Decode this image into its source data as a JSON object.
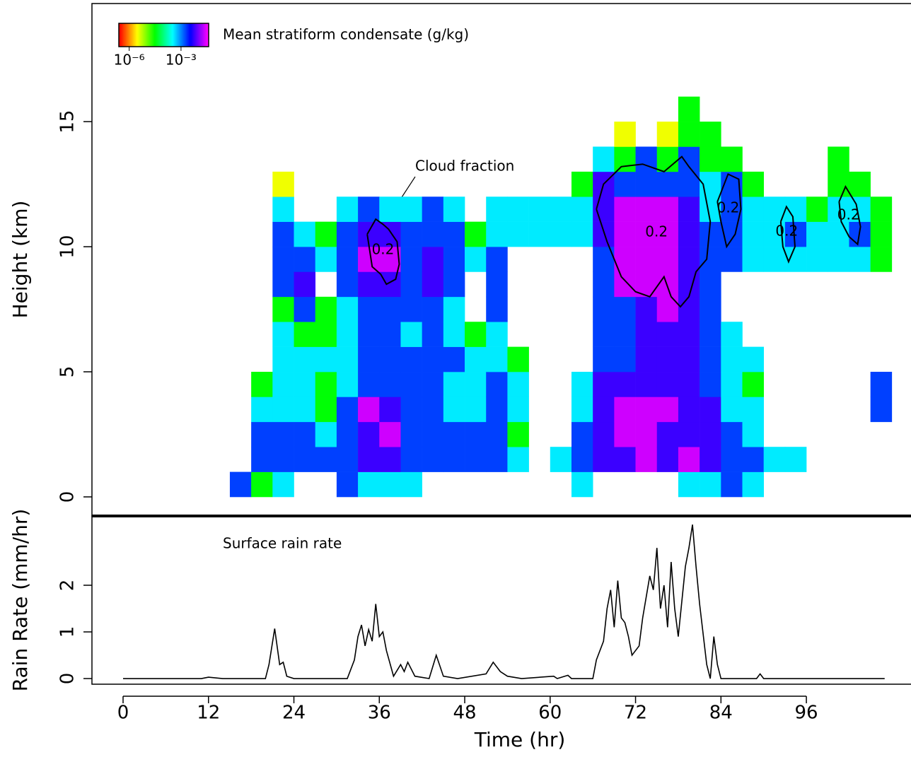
{
  "chart_data": [
    {
      "type": "heatmap",
      "ylabel": "Height (km)",
      "xlim": [
        -4.373,
        110.7
      ],
      "ylim": [
        -0.763,
        19.72
      ],
      "yticks": [
        0,
        5,
        10,
        15
      ],
      "colorbar": {
        "label": "Mean stratiform condensate (g/kg)",
        "clim": [
          -6.6,
          -1.4
        ],
        "ticks": [
          {
            "value": -6,
            "label": "10⁻⁶"
          },
          {
            "value": -3,
            "label": "10⁻³"
          }
        ]
      },
      "annotation": "Cloud fraction",
      "heatmap": {
        "t_edges": [
          15,
          18,
          21,
          24,
          27,
          30,
          33,
          36,
          39,
          42,
          45,
          48,
          51,
          54,
          57,
          60,
          63,
          66,
          69,
          72,
          75,
          78,
          81,
          84,
          87,
          90,
          93,
          96,
          99,
          102,
          105,
          108
        ],
        "z_edges": [
          0,
          1,
          2,
          3,
          4,
          5,
          6,
          7,
          8,
          9,
          10,
          11,
          12,
          13,
          14,
          15,
          16,
          17
        ],
        "values": [
          [
            -2.7,
            null,
            null,
            null,
            null,
            null,
            null,
            null,
            null,
            null,
            null,
            null,
            null,
            null,
            null,
            null,
            null
          ],
          [
            -4.5,
            -2.7,
            -2.7,
            -3.4,
            -4.5,
            null,
            null,
            null,
            null,
            null,
            null,
            null,
            null,
            null,
            null,
            null,
            null
          ],
          [
            -3.4,
            -2.7,
            -2.7,
            -3.4,
            -3.4,
            -3.4,
            -3.4,
            -4.5,
            -2.7,
            -2.7,
            -2.7,
            -3.4,
            -5.5,
            null,
            null,
            null,
            null
          ],
          [
            null,
            -2.7,
            -2.7,
            -3.4,
            -3.4,
            -3.4,
            -4.5,
            -2.7,
            -2.2,
            -2.7,
            -3.4,
            null,
            null,
            null,
            null,
            null,
            null
          ],
          [
            null,
            -2.7,
            -3.4,
            -4.5,
            -4.5,
            -3.4,
            -4.5,
            -4.5,
            null,
            -3.4,
            -4.5,
            null,
            null,
            null,
            null,
            null,
            null
          ],
          [
            -2.7,
            -2.7,
            -2.7,
            -2.7,
            -3.4,
            -3.4,
            -3.4,
            -3.4,
            -2.7,
            -2.7,
            -2.7,
            -3.4,
            null,
            null,
            null,
            null,
            null
          ],
          [
            -3.4,
            -2.2,
            -2.2,
            -1.6,
            -2.7,
            -2.7,
            -2.7,
            -2.7,
            -2.2,
            -1.6,
            -2.2,
            -2.7,
            null,
            null,
            null,
            null,
            null
          ],
          [
            -3.4,
            -2.2,
            -1.6,
            -2.2,
            -2.7,
            -2.7,
            -2.7,
            -2.7,
            -2.2,
            -1.6,
            -2.2,
            -3.4,
            null,
            null,
            null,
            null,
            null
          ],
          [
            -3.4,
            -2.7,
            -2.7,
            -2.7,
            -2.7,
            -2.7,
            -3.4,
            -2.7,
            -2.7,
            -2.7,
            -2.7,
            -3.4,
            null,
            null,
            null,
            null,
            null
          ],
          [
            null,
            -2.7,
            -2.7,
            -2.7,
            -2.7,
            -2.7,
            -2.7,
            -2.7,
            -2.2,
            -2.2,
            -2.7,
            -2.7,
            null,
            null,
            null,
            null,
            null
          ],
          [
            null,
            -2.7,
            -2.7,
            -3.4,
            -3.4,
            -2.7,
            -3.4,
            -3.4,
            -2.7,
            -2.7,
            -2.7,
            -3.4,
            null,
            null,
            null,
            null,
            null
          ],
          [
            null,
            -2.7,
            -2.7,
            -3.4,
            -3.4,
            -3.4,
            -4.5,
            null,
            null,
            -3.4,
            -4.5,
            null,
            null,
            null,
            null,
            null,
            null
          ],
          [
            null,
            -2.7,
            -2.7,
            -2.7,
            -2.7,
            -3.4,
            -3.4,
            -2.7,
            -2.7,
            -2.7,
            -3.4,
            -3.4,
            null,
            null,
            null,
            null,
            null
          ],
          [
            null,
            -3.4,
            -4.5,
            -3.4,
            -3.4,
            -4.5,
            null,
            null,
            null,
            null,
            -3.4,
            -3.4,
            null,
            null,
            null,
            null,
            null
          ],
          [
            null,
            null,
            null,
            null,
            null,
            null,
            null,
            null,
            null,
            null,
            -3.4,
            -3.4,
            null,
            null,
            null,
            null,
            null
          ],
          [
            null,
            -3.4,
            null,
            null,
            null,
            null,
            null,
            null,
            null,
            null,
            -3.4,
            -3.4,
            null,
            null,
            null,
            null,
            null
          ],
          [
            -3.4,
            -2.7,
            -2.7,
            -3.4,
            -3.4,
            null,
            null,
            null,
            null,
            null,
            -3.4,
            -3.4,
            -4.5,
            null,
            null,
            null,
            null
          ],
          [
            null,
            -2.2,
            -2.2,
            -2.2,
            -2.2,
            -2.7,
            -2.7,
            -2.7,
            -2.7,
            -2.7,
            -2.2,
            -2.2,
            -2.2,
            -3.4,
            null,
            null,
            null
          ],
          [
            null,
            -2.2,
            -1.6,
            -1.6,
            -2.2,
            -2.7,
            -2.7,
            -2.7,
            -1.6,
            -1.6,
            -1.6,
            -1.6,
            -2.7,
            -4.5,
            -5.5,
            null,
            null
          ],
          [
            null,
            -1.6,
            -1.6,
            -1.6,
            -2.2,
            -2.2,
            -2.2,
            -2.2,
            -1.6,
            -1.6,
            -1.6,
            -1.6,
            -2.7,
            -2.7,
            null,
            null,
            null
          ],
          [
            null,
            -2.2,
            -2.2,
            -1.6,
            -2.2,
            -2.2,
            -2.2,
            -1.6,
            -1.6,
            -1.6,
            -1.6,
            -1.6,
            -2.7,
            -4.5,
            -5.5,
            null,
            null
          ],
          [
            -3.4,
            -1.6,
            -2.2,
            -2.2,
            -2.2,
            -2.2,
            -2.2,
            -2.2,
            -2.2,
            -2.2,
            -2.2,
            -2.2,
            -2.7,
            -2.7,
            -4.5,
            -4.5,
            null
          ],
          [
            -3.4,
            -2.2,
            -2.2,
            -2.2,
            -2.7,
            -2.7,
            -2.7,
            -2.7,
            -2.7,
            -2.7,
            -2.7,
            -3.4,
            -3.4,
            -4.5,
            -4.5,
            null,
            null
          ],
          [
            -2.7,
            -2.7,
            -2.7,
            -3.4,
            -3.4,
            -3.4,
            -3.4,
            null,
            null,
            -2.7,
            -2.7,
            -2.7,
            -2.7,
            -4.5,
            null,
            null,
            null
          ],
          [
            -3.4,
            -2.7,
            -3.4,
            -3.4,
            -4.5,
            -3.4,
            null,
            null,
            null,
            -3.4,
            -3.4,
            -3.4,
            -4.5,
            null,
            null,
            null,
            null
          ],
          [
            null,
            -3.4,
            null,
            null,
            null,
            null,
            null,
            null,
            null,
            -3.4,
            -3.4,
            -3.4,
            null,
            null,
            null,
            null,
            null
          ],
          [
            null,
            -3.4,
            null,
            null,
            null,
            null,
            null,
            null,
            null,
            -3.4,
            -2.7,
            -3.4,
            null,
            null,
            null,
            null,
            null
          ],
          [
            null,
            null,
            null,
            null,
            null,
            null,
            null,
            null,
            null,
            -3.4,
            -3.4,
            -4.5,
            null,
            null,
            null,
            null,
            null
          ],
          [
            null,
            null,
            null,
            null,
            null,
            null,
            null,
            null,
            null,
            -3.4,
            -3.4,
            -3.4,
            -4.5,
            -4.5,
            null,
            null,
            null
          ],
          [
            null,
            null,
            null,
            null,
            null,
            null,
            null,
            null,
            null,
            -3.4,
            -2.7,
            -3.4,
            -4.5,
            null,
            null,
            null,
            null
          ],
          [
            null,
            null,
            null,
            -2.7,
            -2.7,
            null,
            null,
            null,
            null,
            -4.5,
            -4.5,
            -4.5,
            null,
            null,
            null,
            null,
            null
          ]
        ]
      },
      "contours": [
        {
          "level": 0.2,
          "t": [
            34.3,
            35.5,
            36.5,
            37.3,
            38.5,
            38.8,
            38.3,
            37.0,
            36.2,
            35.0,
            34.3
          ],
          "z": [
            10.5,
            11.1,
            10.9,
            10.7,
            10.2,
            9.3,
            8.7,
            8.5,
            8.9,
            9.2,
            10.5
          ]
        },
        {
          "level": 0.2,
          "t": [
            66.5,
            67.5,
            70,
            73,
            76,
            78.5,
            79.5,
            81.5,
            82.5,
            82,
            80.5,
            79.5,
            78.3,
            77,
            76,
            74,
            72,
            70,
            68,
            66.5
          ],
          "z": [
            11.5,
            12.5,
            13.2,
            13.3,
            13.0,
            13.6,
            13.2,
            12.5,
            11.0,
            9.5,
            9.0,
            8.0,
            7.6,
            8.0,
            8.8,
            8.0,
            8.2,
            8.8,
            10.2,
            11.5
          ]
        },
        {
          "level": 0.2,
          "t": [
            83.5,
            85,
            86.5,
            86.8,
            86,
            84.8,
            84,
            83.5
          ],
          "z": [
            11.8,
            12.9,
            12.7,
            11.5,
            10.5,
            10.0,
            11.0,
            11.8
          ]
        },
        {
          "level": 0.2,
          "t": [
            92.4,
            93.2,
            94.1,
            94.4,
            93.5,
            92.7,
            92.4
          ],
          "z": [
            11.0,
            11.6,
            11.2,
            10.0,
            9.4,
            10.0,
            11.0
          ]
        },
        {
          "level": 0.2,
          "t": [
            100.6,
            101.5,
            103.0,
            103.6,
            103.2,
            102.0,
            100.9,
            100.6
          ],
          "z": [
            11.8,
            12.4,
            11.7,
            10.8,
            10.1,
            10.4,
            11.0,
            11.8
          ]
        }
      ]
    },
    {
      "type": "line",
      "xlabel": "Time (hr)",
      "ylabel": "Rain Rate (mm/hr)",
      "annotation": "Surface rain rate",
      "xlim": [
        -4.373,
        110.7
      ],
      "xticks": [
        0,
        12,
        24,
        36,
        48,
        60,
        72,
        84,
        96
      ],
      "ylim": [
        -0.121,
        3.485
      ],
      "yticks": [
        0,
        1,
        2
      ],
      "color": "#000000",
      "x": [
        0,
        11,
        12,
        14,
        20,
        20.5,
        21.3,
        22,
        22.5,
        23,
        24,
        31.5,
        32.5,
        33,
        33.5,
        34,
        34.5,
        35,
        35.5,
        36,
        36.5,
        37,
        38,
        39,
        39.5,
        40,
        41,
        43,
        44,
        45,
        47,
        51,
        52,
        53,
        54,
        56,
        60.5,
        61,
        62.5,
        63,
        66,
        66.5,
        67.5,
        68,
        68.5,
        69,
        69.5,
        70,
        70.5,
        71,
        71.5,
        72.5,
        73,
        74,
        74.5,
        75,
        75.5,
        76,
        76.5,
        77,
        77.5,
        78,
        79,
        79.5,
        80,
        80.5,
        81,
        82,
        82.5,
        83,
        83.5,
        84,
        89,
        89.5,
        90,
        107
      ],
      "values": [
        0,
        0,
        0.03,
        0,
        0,
        0.3,
        1.07,
        0.3,
        0.35,
        0.05,
        0,
        0,
        0.4,
        0.9,
        1.15,
        0.7,
        1.05,
        0.8,
        1.6,
        0.9,
        1.0,
        0.6,
        0.05,
        0.3,
        0.15,
        0.35,
        0.05,
        0,
        0.5,
        0.05,
        0,
        0.1,
        0.35,
        0.15,
        0.05,
        0,
        0.05,
        0,
        0.07,
        0,
        0,
        0.4,
        0.8,
        1.5,
        1.9,
        1.1,
        2.1,
        1.3,
        1.2,
        0.9,
        0.5,
        0.7,
        1.3,
        2.2,
        1.9,
        2.8,
        1.5,
        2.0,
        1.1,
        2.5,
        1.5,
        0.9,
        2.4,
        2.8,
        3.3,
        2.4,
        1.6,
        0.3,
        0,
        0.9,
        0.3,
        0,
        0,
        0.1,
        0,
        0
      ]
    }
  ]
}
